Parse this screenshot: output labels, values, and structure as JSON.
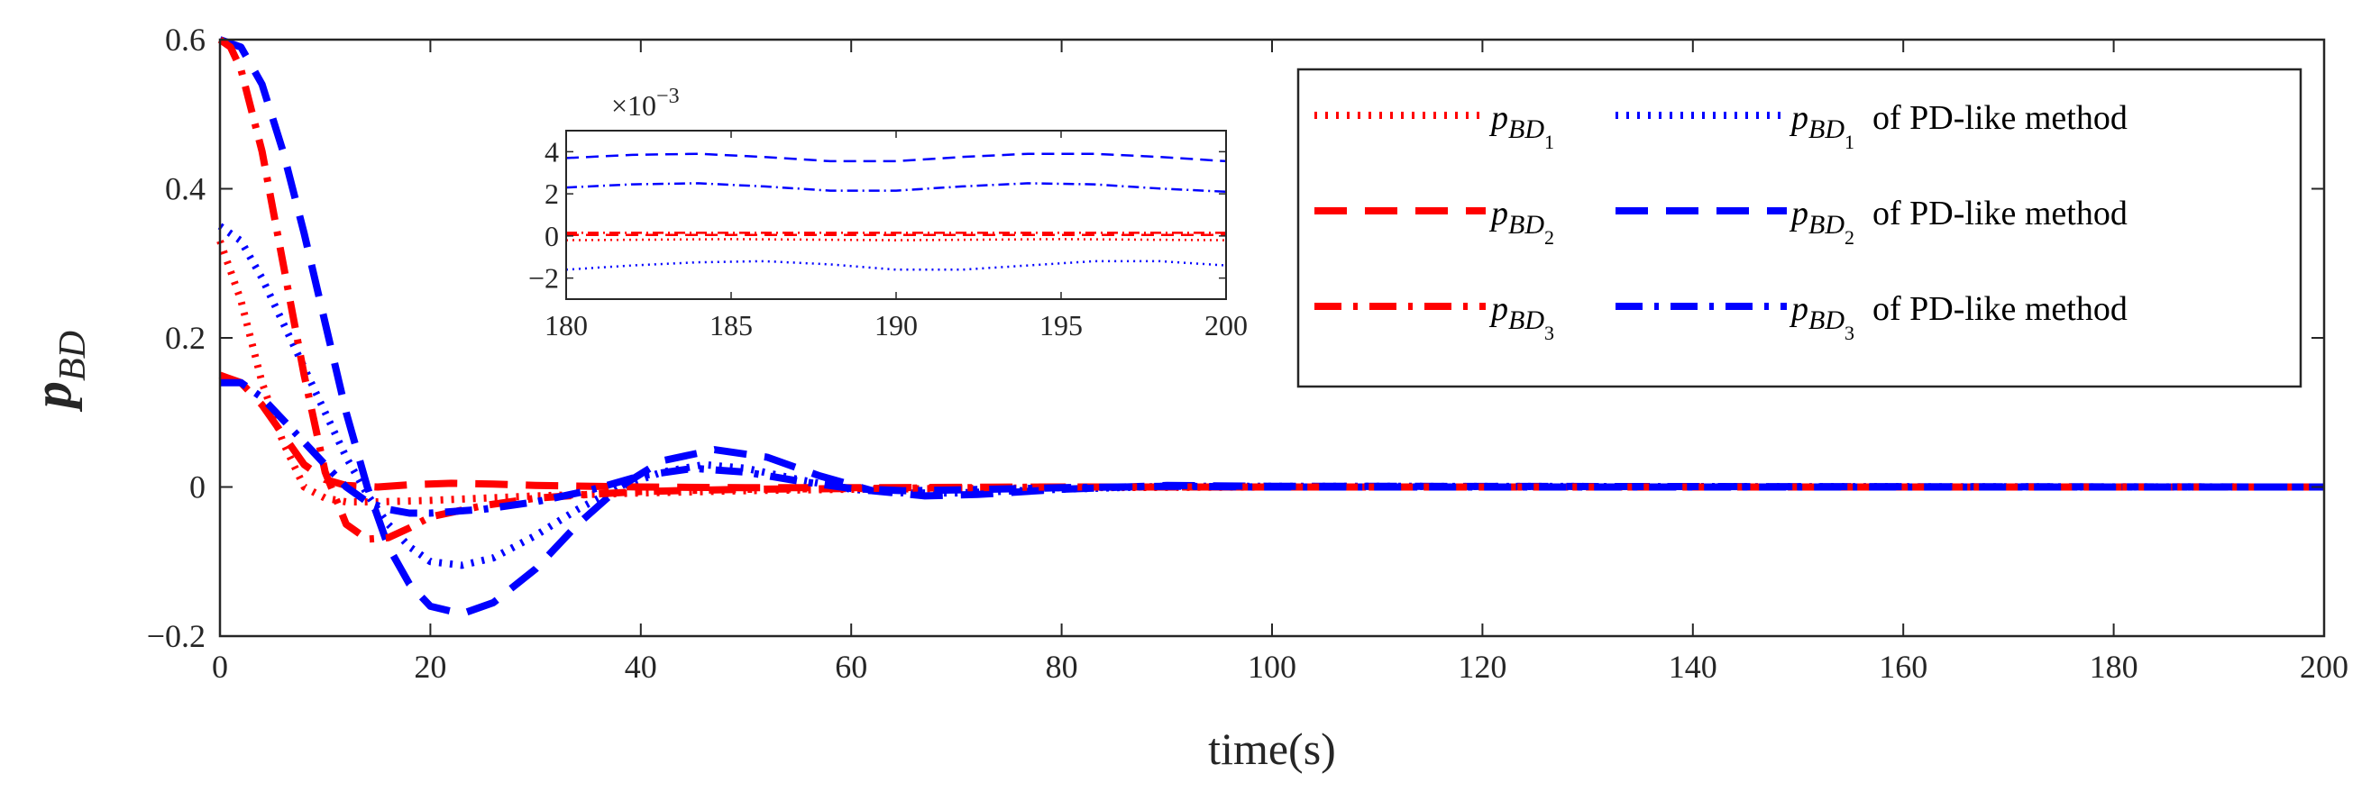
{
  "chart_data": {
    "type": "line",
    "ylabel_main": "p",
    "ylabel_sub": "BD",
    "xlabel": "time(s)",
    "xlim": [
      0,
      200
    ],
    "ylim": [
      -0.2,
      0.6
    ],
    "xticks": [
      0,
      20,
      40,
      60,
      80,
      100,
      120,
      140,
      160,
      180,
      200
    ],
    "yticks": [
      -0.2,
      0,
      0.2,
      0.4,
      0.6
    ],
    "xtick_labels": [
      "0",
      "20",
      "40",
      "60",
      "80",
      "100",
      "120",
      "140",
      "160",
      "180",
      "200"
    ],
    "ytick_labels": [
      "−0.2",
      "0",
      "0.2",
      "0.4",
      "0.6"
    ],
    "grid": false,
    "legend_placement": "top-right",
    "legend": [
      {
        "label_main": "p",
        "label_sub": "BD",
        "label_index": "1",
        "suffix": ""
      },
      {
        "label_main": "p",
        "label_sub": "BD",
        "label_index": "1",
        "suffix": "of PD-like method"
      },
      {
        "label_main": "p",
        "label_sub": "BD",
        "label_index": "2",
        "suffix": ""
      },
      {
        "label_main": "p",
        "label_sub": "BD",
        "label_index": "2",
        "suffix": "of PD-like method"
      },
      {
        "label_main": "p",
        "label_sub": "BD",
        "label_index": "3",
        "suffix": ""
      },
      {
        "label_main": "p",
        "label_sub": "BD",
        "label_index": "3",
        "suffix": "of PD-like method"
      }
    ],
    "series": [
      {
        "name": "p_BD1",
        "color": "#ff0000",
        "dash": "dotted",
        "x": [
          0,
          2,
          4,
          6,
          8,
          10,
          12,
          15,
          20,
          25,
          30,
          35,
          40,
          50,
          60,
          70,
          80,
          100,
          200
        ],
        "y": [
          0.33,
          0.25,
          0.14,
          0.06,
          0.0,
          -0.015,
          -0.02,
          -0.02,
          -0.018,
          -0.015,
          -0.012,
          -0.01,
          -0.008,
          -0.005,
          -0.003,
          -0.002,
          -0.001,
          0.0,
          0.0
        ]
      },
      {
        "name": "p_BD1 of PD-like method",
        "color": "#0000ff",
        "dash": "dotted",
        "x": [
          0,
          2,
          4,
          6,
          8,
          10,
          12,
          14,
          16,
          18,
          20,
          23,
          26,
          30,
          34,
          38,
          42,
          46,
          50,
          55,
          60,
          65,
          70,
          80,
          90,
          100,
          200
        ],
        "y": [
          0.35,
          0.33,
          0.28,
          0.22,
          0.16,
          0.1,
          0.04,
          -0.01,
          -0.05,
          -0.08,
          -0.1,
          -0.105,
          -0.095,
          -0.065,
          -0.03,
          0.0,
          0.02,
          0.03,
          0.025,
          0.01,
          -0.003,
          -0.008,
          -0.008,
          -0.003,
          0.001,
          0.001,
          0.0
        ]
      },
      {
        "name": "p_BD2",
        "color": "#ff0000",
        "dash": "dashed",
        "x": [
          0,
          2,
          4,
          6,
          8,
          10,
          12,
          15,
          18,
          22,
          26,
          30,
          40,
          50,
          60,
          70,
          80,
          100,
          200
        ],
        "y": [
          0.15,
          0.14,
          0.11,
          0.07,
          0.03,
          0.01,
          0.002,
          0.0,
          0.003,
          0.005,
          0.004,
          0.002,
          0.0,
          -0.001,
          -0.001,
          -0.0005,
          0.0,
          0.0,
          0.0
        ]
      },
      {
        "name": "p_BD2 of PD-like method",
        "color": "#0000ff",
        "dash": "dashed",
        "x": [
          0,
          2,
          4,
          6,
          8,
          10,
          12,
          14,
          16,
          18,
          20,
          23,
          26,
          30,
          34,
          38,
          42,
          47,
          52,
          57,
          62,
          67,
          72,
          80,
          90,
          100,
          200
        ],
        "y": [
          0.6,
          0.59,
          0.54,
          0.45,
          0.34,
          0.22,
          0.1,
          0.0,
          -0.08,
          -0.13,
          -0.16,
          -0.17,
          -0.155,
          -0.11,
          -0.05,
          0.0,
          0.035,
          0.05,
          0.04,
          0.015,
          -0.005,
          -0.012,
          -0.01,
          -0.003,
          0.002,
          0.001,
          0.0
        ]
      },
      {
        "name": "p_BD3",
        "color": "#ff0000",
        "dash": "dashdot",
        "x": [
          0,
          1,
          2,
          4,
          6,
          8,
          10,
          12,
          14,
          16,
          18,
          20,
          25,
          30,
          35,
          40,
          50,
          60,
          80,
          100,
          200
        ],
        "y": [
          0.6,
          0.59,
          0.56,
          0.45,
          0.3,
          0.15,
          0.02,
          -0.05,
          -0.07,
          -0.068,
          -0.055,
          -0.04,
          -0.025,
          -0.015,
          -0.01,
          -0.006,
          -0.003,
          -0.002,
          0.0,
          0.0,
          0.0
        ]
      },
      {
        "name": "p_BD3 of PD-like method",
        "color": "#0000ff",
        "dash": "dashdot",
        "x": [
          0,
          2,
          4,
          6,
          8,
          10,
          12,
          14,
          16,
          18,
          20,
          25,
          30,
          35,
          40,
          45,
          50,
          55,
          60,
          65,
          70,
          80,
          90,
          100,
          200
        ],
        "y": [
          0.14,
          0.14,
          0.12,
          0.09,
          0.06,
          0.03,
          0.0,
          -0.02,
          -0.03,
          -0.035,
          -0.035,
          -0.03,
          -0.02,
          -0.005,
          0.015,
          0.025,
          0.02,
          0.008,
          -0.002,
          -0.005,
          -0.004,
          -0.001,
          0.001,
          0.0,
          0.0
        ]
      }
    ],
    "inset": {
      "xlim": [
        180,
        200
      ],
      "ylim": [
        -3,
        5
      ],
      "exponent_label": "×10",
      "exponent_value": "−3",
      "xticks": [
        180,
        185,
        190,
        195,
        200
      ],
      "xtick_labels": [
        "180",
        "185",
        "190",
        "195",
        "200"
      ],
      "yticks": [
        -2,
        0,
        2,
        4
      ],
      "ytick_labels": [
        "−2",
        "0",
        "2",
        "4"
      ],
      "series": [
        {
          "name": "p_BD1",
          "color": "#ff0000",
          "dash": "dotted",
          "x": [
            180,
            185,
            190,
            195,
            200
          ],
          "y": [
            -0.2,
            -0.15,
            -0.2,
            -0.15,
            -0.2
          ]
        },
        {
          "name": "p_BD1 of PD-like method",
          "color": "#0000ff",
          "dash": "dotted",
          "x": [
            180,
            182,
            184,
            186,
            188,
            190,
            192,
            194,
            196,
            198,
            200
          ],
          "y": [
            -1.6,
            -1.4,
            -1.25,
            -1.2,
            -1.35,
            -1.6,
            -1.6,
            -1.4,
            -1.2,
            -1.2,
            -1.4
          ]
        },
        {
          "name": "p_BD2",
          "color": "#ff0000",
          "dash": "dashed",
          "x": [
            180,
            185,
            190,
            195,
            200
          ],
          "y": [
            0.05,
            0.05,
            0.05,
            0.05,
            0.05
          ]
        },
        {
          "name": "p_BD2 of PD-like method",
          "color": "#0000ff",
          "dash": "dashed",
          "x": [
            180,
            182,
            184,
            186,
            188,
            190,
            192,
            194,
            196,
            198,
            200
          ],
          "y": [
            3.7,
            3.85,
            3.9,
            3.75,
            3.55,
            3.55,
            3.75,
            3.9,
            3.9,
            3.75,
            3.55
          ]
        },
        {
          "name": "p_BD3",
          "color": "#ff0000",
          "dash": "dashdot",
          "x": [
            180,
            185,
            190,
            195,
            200
          ],
          "y": [
            0.15,
            0.15,
            0.15,
            0.15,
            0.15
          ]
        },
        {
          "name": "p_BD3 of PD-like method",
          "color": "#0000ff",
          "dash": "dashdot",
          "x": [
            180,
            182,
            184,
            186,
            188,
            190,
            192,
            194,
            196,
            198,
            200
          ],
          "y": [
            2.3,
            2.45,
            2.5,
            2.35,
            2.15,
            2.15,
            2.35,
            2.5,
            2.45,
            2.25,
            2.1
          ]
        }
      ]
    }
  }
}
